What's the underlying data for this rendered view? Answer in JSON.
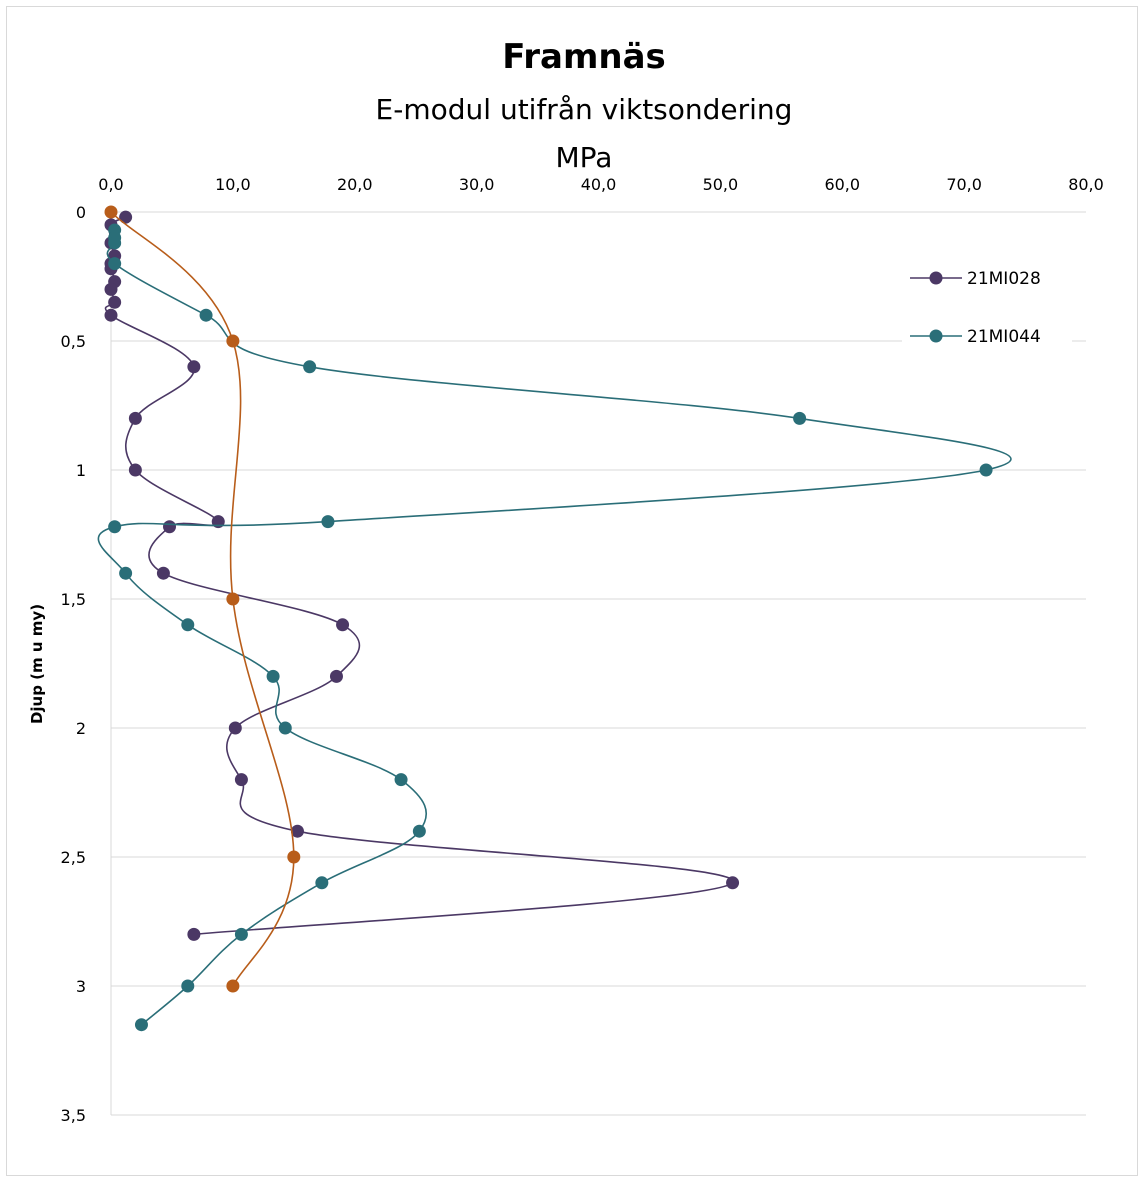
{
  "chart_data": {
    "type": "line",
    "title": "Framnäs",
    "subtitle": "E-modul utifrån viktsondering",
    "xlabel": "MPa",
    "ylabel": "Djup (m u my)",
    "x_axis_position": "top",
    "y_inverted": true,
    "xlim": [
      0,
      80
    ],
    "ylim": [
      0,
      3.5
    ],
    "x_ticks": [
      "0,0",
      "10,0",
      "20,0",
      "30,0",
      "40,0",
      "50,0",
      "60,0",
      "70,0",
      "80,0"
    ],
    "y_ticks": [
      "0",
      "0,5",
      "1",
      "1,5",
      "2",
      "2,5",
      "3",
      "3,5"
    ],
    "grid": "horizontal",
    "legend_position": "right",
    "smooth": true,
    "markers": "circle",
    "series": [
      {
        "name": "21MI028",
        "color": "#4b3865",
        "in_legend": true,
        "points": [
          [
            1.2,
            0.02
          ],
          [
            0.0,
            0.05
          ],
          [
            0.0,
            0.12
          ],
          [
            0.3,
            0.17
          ],
          [
            0.0,
            0.2
          ],
          [
            0.0,
            0.22
          ],
          [
            0.3,
            0.27
          ],
          [
            0.0,
            0.3
          ],
          [
            0.3,
            0.35
          ],
          [
            0.0,
            0.4
          ],
          [
            6.8,
            0.6
          ],
          [
            2.0,
            0.8
          ],
          [
            2.0,
            1.0
          ],
          [
            8.8,
            1.2
          ],
          [
            4.8,
            1.22
          ],
          [
            4.3,
            1.4
          ],
          [
            19.0,
            1.6
          ],
          [
            18.5,
            1.8
          ],
          [
            10.2,
            2.0
          ],
          [
            10.7,
            2.2
          ],
          [
            15.3,
            2.4
          ],
          [
            51.0,
            2.6
          ],
          [
            6.8,
            2.8
          ]
        ]
      },
      {
        "name": "21MI044",
        "color": "#2a6e78",
        "in_legend": true,
        "points": [
          [
            0.3,
            0.07
          ],
          [
            0.3,
            0.1
          ],
          [
            0.3,
            0.12
          ],
          [
            0.3,
            0.2
          ],
          [
            7.8,
            0.4
          ],
          [
            16.3,
            0.6
          ],
          [
            56.5,
            0.8
          ],
          [
            71.8,
            1.0
          ],
          [
            17.8,
            1.2
          ],
          [
            0.3,
            1.22
          ],
          [
            1.2,
            1.4
          ],
          [
            6.3,
            1.6
          ],
          [
            13.3,
            1.8
          ],
          [
            14.3,
            2.0
          ],
          [
            23.8,
            2.2
          ],
          [
            25.3,
            2.4
          ],
          [
            17.3,
            2.6
          ],
          [
            10.7,
            2.8
          ],
          [
            6.3,
            3.0
          ],
          [
            2.5,
            3.15
          ]
        ]
      },
      {
        "name": "",
        "color": "#b85d1a",
        "in_legend": false,
        "points": [
          [
            0.0,
            0.0
          ],
          [
            10.0,
            0.5
          ],
          [
            10.0,
            1.5
          ],
          [
            15.0,
            2.5
          ],
          [
            10.0,
            3.0
          ]
        ]
      }
    ]
  }
}
